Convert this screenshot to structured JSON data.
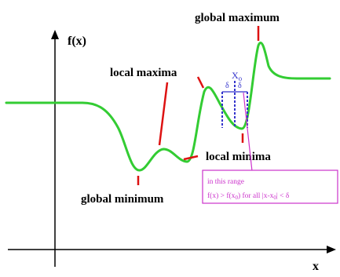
{
  "axes": {
    "y_label": "f(x)",
    "x_label": "x"
  },
  "labels": {
    "global_maximum": "global maximum",
    "local_maxima": "local maxima",
    "local_minima": "local minima",
    "global_minimum": "global minimum"
  },
  "neighborhood": {
    "point_label": "X",
    "point_subscript": "o",
    "delta_left": "δ",
    "delta_right": "δ"
  },
  "note": {
    "line1": "in this range",
    "line2": "f(x) > f(x",
    "line2_sub": "0",
    "line2_mid": ") for all |x-x",
    "line2_sub2": "0",
    "line2_end": "| < δ"
  },
  "colors": {
    "curve": "#33cc33",
    "pointer": "#dd1111",
    "neighborhood": "#3333cc",
    "note": "#cc33cc",
    "axis": "#000000"
  }
}
